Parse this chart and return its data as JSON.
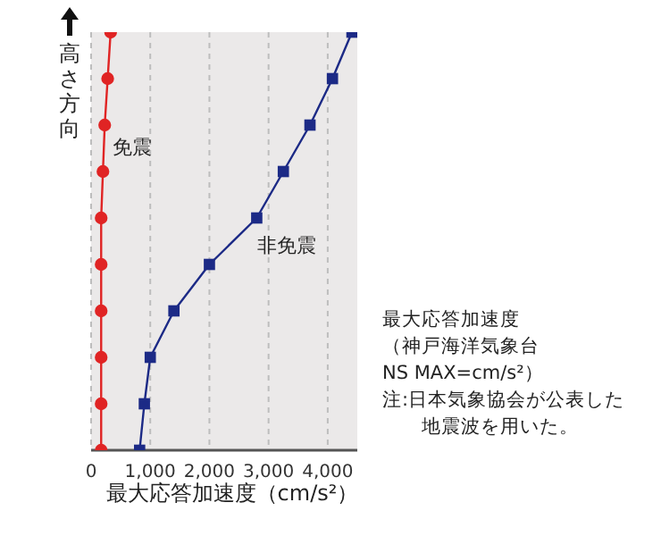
{
  "chart_data": {
    "type": "line",
    "orientation": "horizontal",
    "ylabel": "高さ方向",
    "xlabel": "最大応答加速度（cm/s²）",
    "categories": [
      null,
      null,
      null,
      null,
      null,
      null,
      null,
      null,
      null,
      null
    ],
    "xlim": [
      0,
      4500
    ],
    "xticks": [
      0,
      {
        "value": 1000,
        "label": "1,000"
      },
      {
        "value": 2000,
        "label": "2,000"
      },
      {
        "value": 3000,
        "label": "3,000"
      },
      {
        "value": 4000,
        "label": "4,000"
      }
    ],
    "grid": true,
    "tick_labels": "x",
    "line_style": "solid",
    "series": [
      {
        "name": "免震",
        "color": "#e02424",
        "marker": "circle",
        "values": [
          330,
          280,
          230,
          200,
          170,
          170,
          170,
          170,
          170,
          170
        ]
      },
      {
        "name": "非免震",
        "color": "#1c2a86",
        "marker": "square",
        "values": [
          4410,
          4080,
          3700,
          3250,
          2800,
          2000,
          1400,
          1000,
          900,
          820
        ]
      }
    ],
    "annotations": [
      "最大応答加速度",
      "（神戸海洋気象台",
      "NS MAX=cm/s²）",
      "注:日本気象協会が公表した地震波を用いた。"
    ]
  }
}
